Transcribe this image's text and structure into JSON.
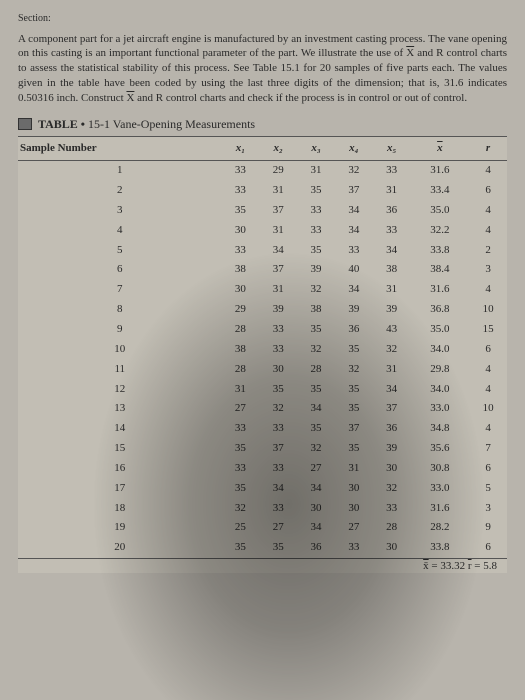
{
  "section_label": "Section:",
  "paragraph_html": "A component part for a jet aircraft engine is manufactured by an investment casting process. The vane opening on this casting is an important functional parameter of the part. We illustrate the use of <span class='overline'>X</span> and R control charts to assess the statistical stability of this process. See Table 15.1 for 20 samples of five parts each. The values given in the table have been coded by using the last three digits of the dimension; that is, 31.6 indicates 0.50316 inch. Construct <span class='overline'>X</span> and R control charts and check if the process is in control or out of control.",
  "table_title_prefix": "TABLE • ",
  "table_title_num": "15-1",
  "table_title_text": " Vane-Opening Measurements",
  "columns": [
    "Sample Number",
    "x₁",
    "x₂",
    "x₃",
    "x₄",
    "x₅",
    "x̄",
    "r"
  ],
  "rows": [
    [
      "1",
      "33",
      "29",
      "31",
      "32",
      "33",
      "31.6",
      "4"
    ],
    [
      "2",
      "33",
      "31",
      "35",
      "37",
      "31",
      "33.4",
      "6"
    ],
    [
      "3",
      "35",
      "37",
      "33",
      "34",
      "36",
      "35.0",
      "4"
    ],
    [
      "4",
      "30",
      "31",
      "33",
      "34",
      "33",
      "32.2",
      "4"
    ],
    [
      "5",
      "33",
      "34",
      "35",
      "33",
      "34",
      "33.8",
      "2"
    ],
    [
      "6",
      "38",
      "37",
      "39",
      "40",
      "38",
      "38.4",
      "3"
    ],
    [
      "7",
      "30",
      "31",
      "32",
      "34",
      "31",
      "31.6",
      "4"
    ],
    [
      "8",
      "29",
      "39",
      "38",
      "39",
      "39",
      "36.8",
      "10"
    ],
    [
      "9",
      "28",
      "33",
      "35",
      "36",
      "43",
      "35.0",
      "15"
    ],
    [
      "10",
      "38",
      "33",
      "32",
      "35",
      "32",
      "34.0",
      "6"
    ],
    [
      "11",
      "28",
      "30",
      "28",
      "32",
      "31",
      "29.8",
      "4"
    ],
    [
      "12",
      "31",
      "35",
      "35",
      "35",
      "34",
      "34.0",
      "4"
    ],
    [
      "13",
      "27",
      "32",
      "34",
      "35",
      "37",
      "33.0",
      "10"
    ],
    [
      "14",
      "33",
      "33",
      "35",
      "37",
      "36",
      "34.8",
      "4"
    ],
    [
      "15",
      "35",
      "37",
      "32",
      "35",
      "39",
      "35.6",
      "7"
    ],
    [
      "16",
      "33",
      "33",
      "27",
      "31",
      "30",
      "30.8",
      "6"
    ],
    [
      "17",
      "35",
      "34",
      "34",
      "30",
      "32",
      "33.0",
      "5"
    ],
    [
      "18",
      "32",
      "33",
      "30",
      "30",
      "33",
      "31.6",
      "3"
    ],
    [
      "19",
      "25",
      "27",
      "34",
      "27",
      "28",
      "28.2",
      "9"
    ],
    [
      "20",
      "35",
      "35",
      "36",
      "33",
      "30",
      "33.8",
      "6"
    ]
  ],
  "footer_html": "<span class='overline'>x̄</span> = 33.32  <span class='overline'>r</span> = 5.8",
  "style": {
    "page_bg": "#b8b4ac",
    "text_color": "#2a2a2a",
    "border_color": "#555",
    "font_body": 11,
    "font_title": 12
  }
}
